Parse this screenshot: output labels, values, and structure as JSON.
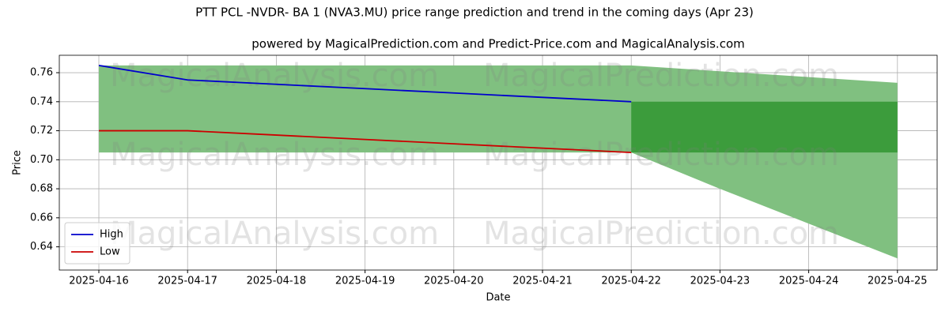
{
  "chart_data": {
    "type": "line",
    "title": "PTT PCL -NVDR-  BA 1 (NVA3.MU) price range prediction and trend in the coming days (Apr 23)",
    "subtitle": "powered by MagicalPrediction.com and Predict-Price.com and MagicalAnalysis.com",
    "xlabel": "Date",
    "ylabel": "Price",
    "categories": [
      "2025-04-16",
      "2025-04-17",
      "2025-04-18",
      "2025-04-19",
      "2025-04-20",
      "2025-04-21",
      "2025-04-22",
      "2025-04-23",
      "2025-04-24",
      "2025-04-25"
    ],
    "series": [
      {
        "name": "High",
        "color": "#0000cc",
        "values": [
          0.765,
          0.755,
          0.752,
          0.749,
          0.746,
          0.743,
          0.74,
          null,
          null,
          null
        ]
      },
      {
        "name": "Low",
        "color": "#cc0000",
        "values": [
          0.72,
          0.72,
          0.717,
          0.714,
          0.711,
          0.708,
          0.705,
          null,
          null,
          null
        ]
      }
    ],
    "bands": [
      {
        "color": "#80c080",
        "upper": [
          0.765,
          0.765,
          0.765,
          0.765,
          0.765,
          0.765,
          0.765,
          0.761,
          0.757,
          0.753
        ],
        "lower": [
          0.705,
          0.705,
          0.705,
          0.705,
          0.705,
          0.705,
          0.705,
          0.68,
          0.656,
          0.632
        ]
      },
      {
        "color": "#3c9c3c",
        "upper": [
          null,
          null,
          null,
          null,
          null,
          null,
          0.74,
          0.74,
          0.74,
          0.74
        ],
        "lower": [
          null,
          null,
          null,
          null,
          null,
          null,
          0.705,
          0.705,
          0.705,
          0.705
        ]
      }
    ],
    "ylim": [
      0.624,
      0.772
    ],
    "yticks": [
      0.64,
      0.66,
      0.68,
      {
        "value": 0.7,
        "label": "0.70"
      },
      0.72,
      0.74,
      0.76
    ],
    "grid": true,
    "legend": "lower left",
    "watermarks": [
      "MagicalAnalysis.com",
      "MagicalPrediction.com"
    ]
  }
}
